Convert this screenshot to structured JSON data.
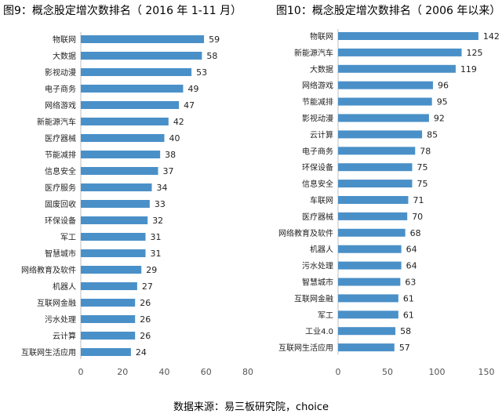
{
  "chart_data": [
    {
      "type": "bar",
      "orientation": "horizontal",
      "title": "图9：概念股定增次数排名（ 2016 年 1-11 月）",
      "categories": [
        "物联网",
        "大数据",
        "影视动漫",
        "电子商务",
        "网络游戏",
        "新能源汽车",
        "医疗器械",
        "节能减排",
        "信息安全",
        "医疗服务",
        "固废回收",
        "环保设备",
        "军工",
        "智慧城市",
        "网络教育及软件",
        "机器人",
        "互联网金融",
        "污水处理",
        "云计算",
        "互联网生活应用"
      ],
      "values": [
        59,
        58,
        53,
        49,
        47,
        42,
        40,
        38,
        37,
        34,
        33,
        32,
        31,
        31,
        29,
        27,
        26,
        26,
        26,
        24
      ],
      "xlim": [
        0,
        80
      ],
      "xticks": [
        "0",
        "20",
        "40",
        "60",
        "80"
      ],
      "bar_color": "#4a90c8",
      "grid": false
    },
    {
      "type": "bar",
      "orientation": "horizontal",
      "title": "图10：概念股定增次数排名（ 2006 年以来）",
      "categories": [
        "物联网",
        "新能源汽车",
        "大数据",
        "网络游戏",
        "节能减排",
        "影视动漫",
        "云计算",
        "电子商务",
        "环保设备",
        "信息安全",
        "车联网",
        "医疗器械",
        "网络教育及软件",
        "机器人",
        "污水处理",
        "智慧城市",
        "互联网金融",
        "军工",
        "工业4.0",
        "互联网生活应用"
      ],
      "values": [
        142,
        125,
        119,
        96,
        95,
        92,
        85,
        78,
        75,
        75,
        71,
        70,
        68,
        64,
        64,
        63,
        61,
        61,
        58,
        57
      ],
      "xlim": [
        0,
        150
      ],
      "xticks": [
        "0",
        "50",
        "100",
        "150"
      ],
      "bar_color": "#4a90c8",
      "grid": false
    }
  ],
  "source_text": "数据来源：易三板研究院，choice"
}
